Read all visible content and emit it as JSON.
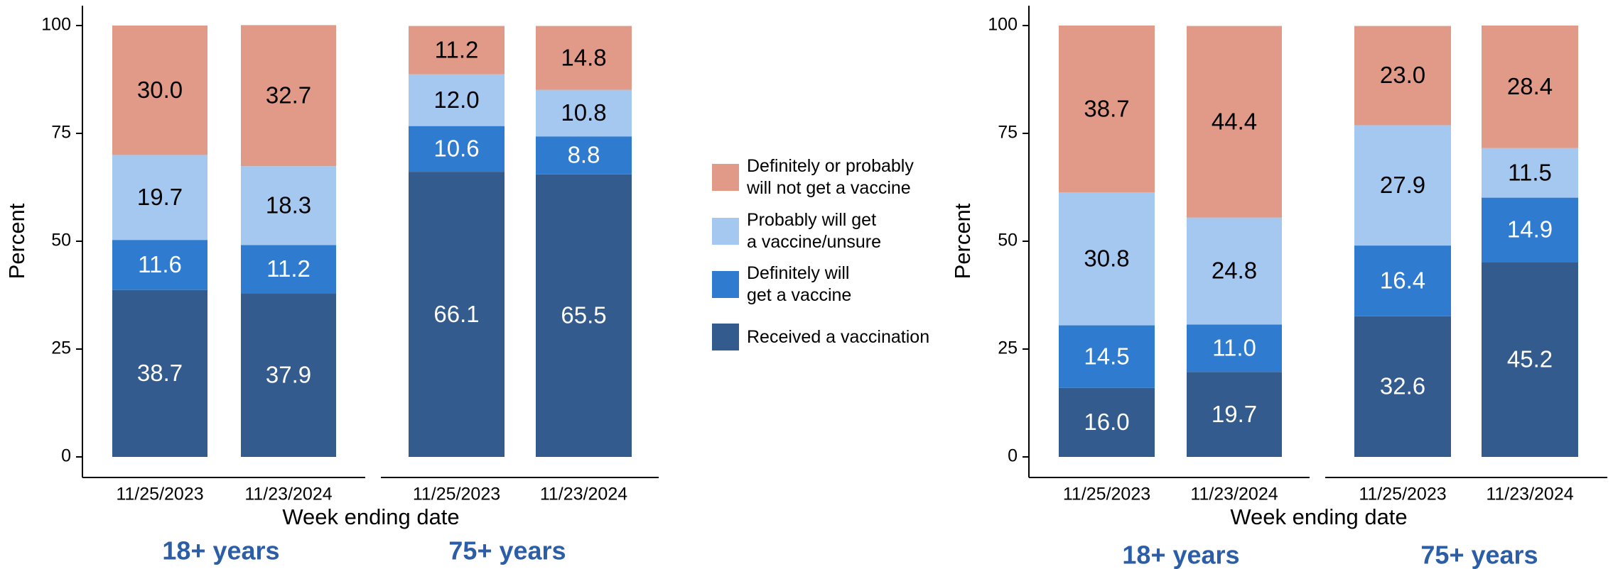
{
  "chart_data": [
    {
      "type": "bar",
      "stacked": true,
      "y_label": "Percent",
      "x_label": "Week ending date",
      "categories": [
        "11/25/2023",
        "11/23/2024",
        "11/25/2023",
        "11/23/2024"
      ],
      "groups": [
        "18+ years",
        "75+ years"
      ],
      "ylim": [
        0,
        100
      ],
      "yticks": [
        0,
        25,
        50,
        75,
        100
      ],
      "legend_position": "right",
      "series": [
        {
          "name": "Received a vaccination",
          "color": "#345b8d",
          "label_color": "#ffffff",
          "values": [
            38.7,
            37.9,
            66.1,
            65.5
          ],
          "value_labels": [
            "38.7",
            "37.9",
            "66.1",
            "65.5"
          ]
        },
        {
          "name": "Definitely will\nget a vaccine",
          "color": "#2e7bd0",
          "label_color": "#ffffff",
          "values": [
            11.6,
            11.2,
            10.6,
            8.8
          ],
          "value_labels": [
            "11.6",
            "11.2",
            "10.6",
            "8.8"
          ]
        },
        {
          "name": "Probably will get\na vaccine/unsure",
          "color": "#a4c8f0",
          "label_color": "#000000",
          "values": [
            19.7,
            18.3,
            12.0,
            10.8
          ],
          "value_labels": [
            "19.7",
            "18.3",
            "12.0",
            "10.8"
          ]
        },
        {
          "name": "Definitely or probably\nwill not get a vaccine",
          "color": "#e09a87",
          "label_color": "#000000",
          "values": [
            30.0,
            32.7,
            11.2,
            14.8
          ],
          "value_labels": [
            "30.0",
            "32.7",
            "11.2",
            "14.8"
          ]
        }
      ]
    },
    {
      "type": "bar",
      "stacked": true,
      "y_label": "Percent",
      "x_label": "Week ending date",
      "categories": [
        "11/25/2023",
        "11/23/2024",
        "11/25/2023",
        "11/23/2024"
      ],
      "groups": [
        "18+ years",
        "75+ years"
      ],
      "ylim": [
        0,
        100
      ],
      "yticks": [
        0,
        25,
        50,
        75,
        100
      ],
      "series": [
        {
          "color": "#345b8d",
          "label_color": "#ffffff",
          "values": [
            16.0,
            19.7,
            32.6,
            45.2
          ],
          "value_labels": [
            "16.0",
            "19.7",
            "32.6",
            "45.2"
          ]
        },
        {
          "color": "#2e7bd0",
          "label_color": "#ffffff",
          "values": [
            14.5,
            11.0,
            16.4,
            14.9
          ],
          "value_labels": [
            "14.5",
            "11.0",
            "16.4",
            "14.9"
          ]
        },
        {
          "color": "#a4c8f0",
          "label_color": "#000000",
          "values": [
            30.8,
            24.8,
            27.9,
            11.5
          ],
          "value_labels": [
            "30.8",
            "24.8",
            "27.9",
            "11.5"
          ]
        },
        {
          "color": "#e09a87",
          "label_color": "#000000",
          "values": [
            38.7,
            44.4,
            23.0,
            28.4
          ],
          "value_labels": [
            "38.7",
            "44.4",
            "23.0",
            "28.4"
          ]
        }
      ]
    }
  ]
}
